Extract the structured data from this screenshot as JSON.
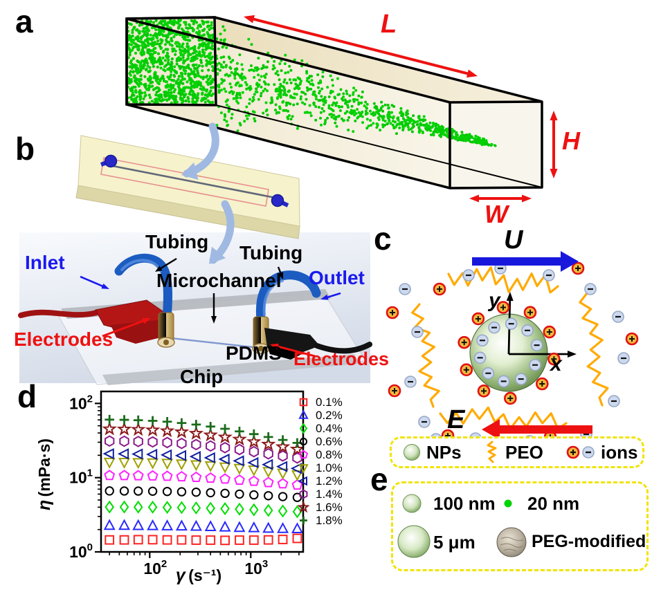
{
  "panel_labels": {
    "a": "a",
    "b": "b",
    "c": "c",
    "d": "d",
    "e": "e"
  },
  "panel_a": {
    "dim_length": "L",
    "dim_height": "H",
    "dim_width": "W"
  },
  "panel_b": {
    "tubing_left": "Tubing",
    "tubing_right": "Tubing",
    "inlet": "Inlet",
    "outlet": "Outlet",
    "microchannel": "Microchannel",
    "electrodes_left": "Electrodes",
    "electrodes_right": "Electrodes",
    "pdms": "PDMS",
    "chip": "Chip"
  },
  "panel_c": {
    "velocity": "U",
    "efield": "E",
    "axis_x": "x",
    "axis_y": "y"
  },
  "symbol_legend": {
    "nps": "NPs",
    "peo": "PEO",
    "ions": "ions"
  },
  "panel_e": {
    "np_100": "100 nm",
    "np_20": "20 nm",
    "np_5um": "5 μm",
    "peg": "PEG-modified"
  },
  "colors": {
    "accent_red": "#ee1111",
    "accent_blue": "#1a1aee",
    "particle_green": "#00d400",
    "legend_box_yellow": "#f0e400",
    "peo_orange": "#ffaa00"
  },
  "chart_data": {
    "type": "scatter",
    "title": "",
    "xlabel": "γ (s⁻¹)",
    "ylabel": "η (mPa·s)",
    "xlabel_symbol": "γ",
    "xlabel_units": "(s⁻¹)",
    "ylabel_symbol": "η",
    "ylabel_units": "(mPa·s)",
    "xscale": "log",
    "yscale": "log",
    "xlim": [
      33,
      3300
    ],
    "ylim": [
      1,
      145
    ],
    "xticks": [
      100,
      1000
    ],
    "yticks": [
      1,
      10,
      100
    ],
    "grid": false,
    "legend_position": "right-outside",
    "x": [
      40,
      56,
      77,
      107,
      149,
      207,
      288,
      400,
      556,
      773,
      1074,
      1493,
      2075,
      2884
    ],
    "series": [
      {
        "name": "0.1%",
        "marker": "square",
        "color": "#ff2222",
        "values": [
          1.45,
          1.45,
          1.46,
          1.46,
          1.45,
          1.45,
          1.44,
          1.44,
          1.43,
          1.44,
          1.44,
          1.45,
          1.47,
          1.52
        ]
      },
      {
        "name": "0.2%",
        "marker": "triangle-up",
        "color": "#2929ff",
        "values": [
          2.26,
          2.26,
          2.25,
          2.24,
          2.23,
          2.22,
          2.2,
          2.18,
          2.15,
          2.12,
          2.1,
          2.07,
          2.05,
          2.04
        ]
      },
      {
        "name": "0.4%",
        "marker": "diamond",
        "color": "#00dd00",
        "values": [
          4.02,
          4.02,
          4.01,
          4.0,
          3.98,
          3.95,
          3.91,
          3.87,
          3.82,
          3.76,
          3.69,
          3.62,
          3.55,
          3.48
        ]
      },
      {
        "name": "0.6%",
        "marker": "circle",
        "color": "#000000",
        "values": [
          6.62,
          6.61,
          6.59,
          6.56,
          6.51,
          6.45,
          6.37,
          6.27,
          6.15,
          6.01,
          5.86,
          5.71,
          5.56,
          5.42
        ]
      },
      {
        "name": "0.8%",
        "marker": "pentagon",
        "color": "#ff20ff",
        "values": [
          10.7,
          10.68,
          10.63,
          10.55,
          10.44,
          10.29,
          10.1,
          9.86,
          9.58,
          9.27,
          8.94,
          8.6,
          8.27,
          7.95
        ]
      },
      {
        "name": "1.0%",
        "marker": "triangle-down",
        "color": "#a0a000",
        "values": [
          16.2,
          16.15,
          16.05,
          15.9,
          15.68,
          15.38,
          15.0,
          14.54,
          14.0,
          13.4,
          12.78,
          12.15,
          11.55,
          11.0
        ]
      },
      {
        "name": "1.2%",
        "marker": "triangle-left",
        "color": "#0f1f9e",
        "values": [
          21.0,
          20.93,
          20.8,
          20.58,
          20.26,
          19.82,
          19.25,
          18.55,
          17.74,
          16.85,
          15.92,
          14.99,
          14.1,
          13.3
        ]
      },
      {
        "name": "1.4%",
        "marker": "hexagon",
        "color": "#8a1a8a",
        "values": [
          31.1,
          30.95,
          30.7,
          30.3,
          29.7,
          28.9,
          27.9,
          26.7,
          25.35,
          23.9,
          22.4,
          20.95,
          19.6,
          18.4
        ]
      },
      {
        "name": "1.6%",
        "marker": "star",
        "color": "#8b1a1a",
        "values": [
          45.2,
          44.9,
          44.4,
          43.7,
          42.6,
          41.2,
          39.4,
          37.4,
          35.1,
          32.8,
          30.4,
          28.1,
          26.0,
          24.1
        ]
      },
      {
        "name": "1.8%",
        "marker": "plus",
        "color": "#1a6b1a",
        "values": [
          60.5,
          60.1,
          59.4,
          58.3,
          56.7,
          54.5,
          51.9,
          48.8,
          45.5,
          42.0,
          38.6,
          35.3,
          32.2,
          29.4
        ]
      }
    ]
  }
}
